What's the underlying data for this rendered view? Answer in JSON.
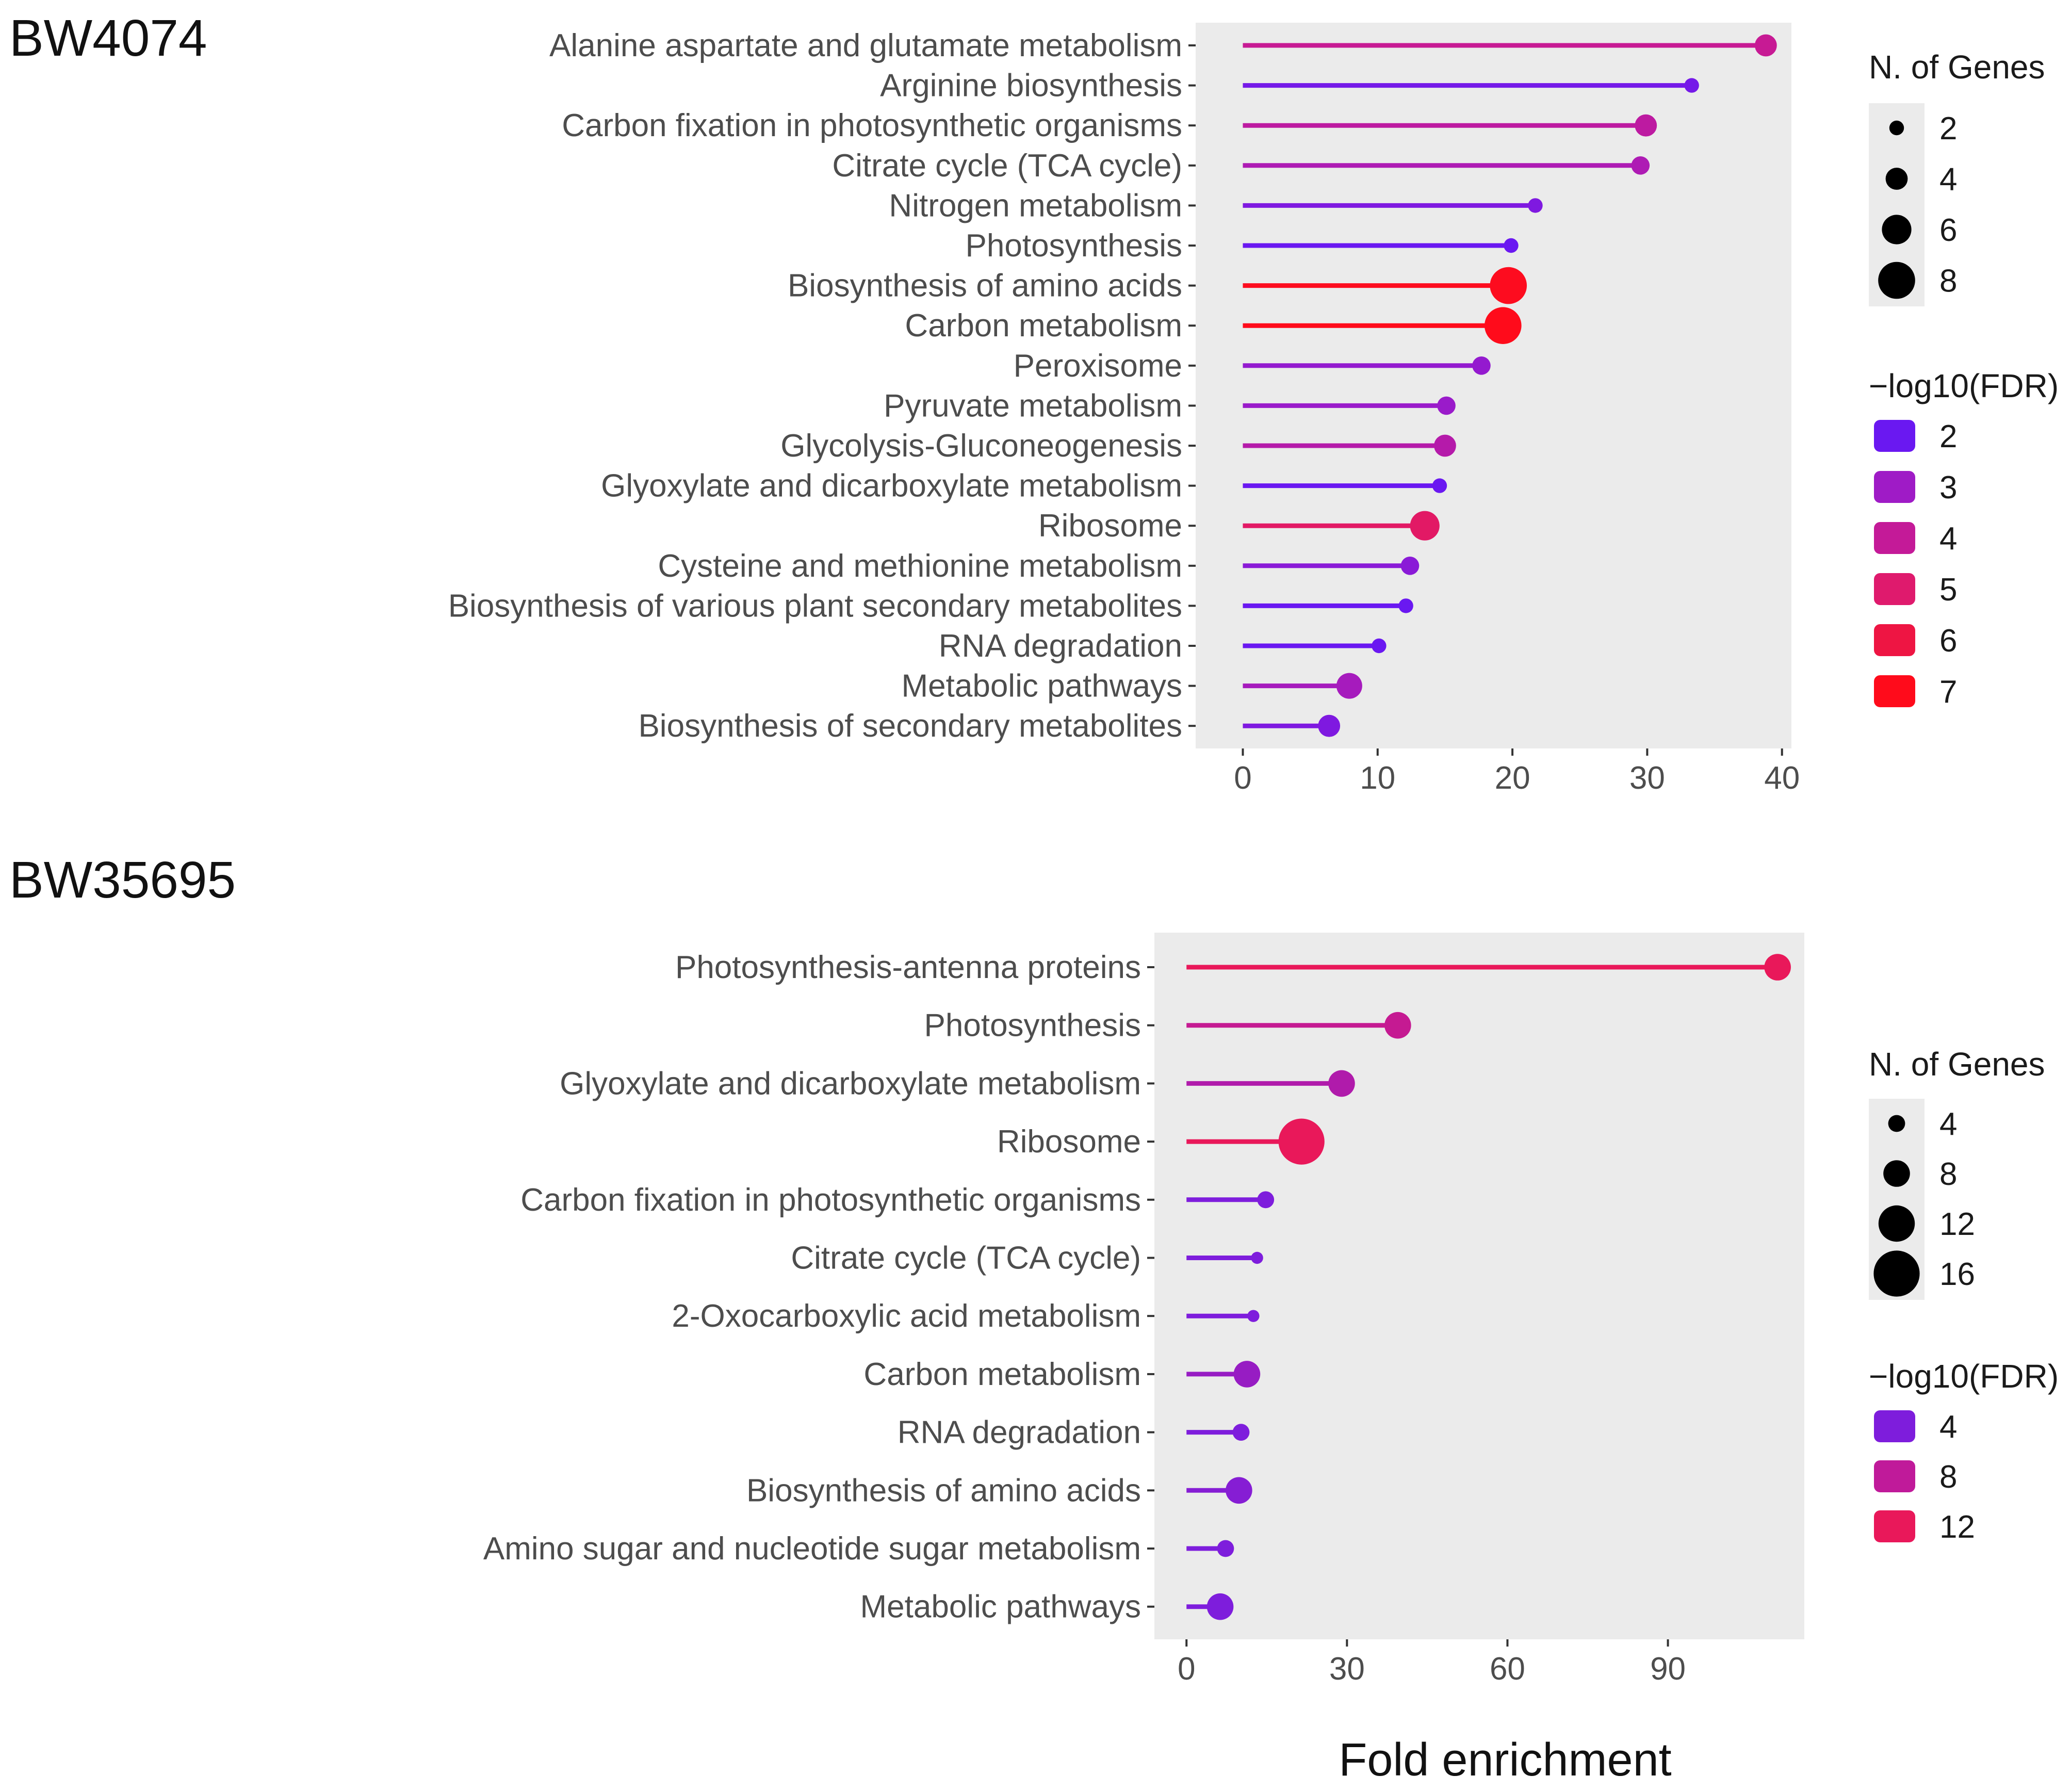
{
  "chart_data": [
    {
      "type": "lollipop",
      "title": "BW4074",
      "xlabel": "",
      "ylabel": "",
      "xlim": [
        -3.5,
        40.7
      ],
      "xticks": [
        0,
        10,
        20,
        30,
        40
      ],
      "grid": false,
      "categories": [
        "Alanine aspartate and glutamate metabolism",
        "Arginine biosynthesis",
        "Carbon fixation in photosynthetic organisms",
        "Citrate cycle (TCA cycle)",
        "Nitrogen metabolism",
        "Photosynthesis",
        "Biosynthesis of amino acids",
        "Carbon metabolism",
        "Peroxisome",
        "Pyruvate metabolism",
        "Glycolysis-Gluconeogenesis",
        "Glyoxylate and dicarboxylate metabolism",
        "Ribosome",
        "Cysteine and methionine metabolism",
        "Biosynthesis of various plant secondary metabolites",
        "RNA degradation",
        "Metabolic pathways",
        "Biosynthesis of secondary metabolites"
      ],
      "fold_enrichment": [
        38.8,
        33.3,
        29.9,
        29.5,
        21.7,
        19.9,
        19.7,
        19.3,
        17.7,
        15.1,
        15.0,
        14.6,
        13.5,
        12.4,
        12.1,
        10.1,
        7.9,
        6.4
      ],
      "n_genes": [
        4,
        2,
        4,
        3,
        2,
        2,
        8,
        8,
        3,
        3,
        4,
        2,
        6,
        3,
        2,
        2,
        5,
        4
      ],
      "neg_log10_fdr": [
        4.1,
        2.2,
        3.8,
        3.4,
        2.4,
        2.0,
        6.9,
        7.0,
        2.8,
        2.9,
        3.6,
        1.7,
        5.2,
        2.6,
        1.5,
        1.2,
        3.2,
        2.4
      ],
      "legend_size": {
        "title": "N. of Genes",
        "values": [
          2,
          4,
          6,
          8
        ]
      },
      "legend_color": {
        "title": "−log10(FDR)",
        "values": [
          2,
          3,
          4,
          5,
          6,
          7
        ],
        "colors": [
          "#6a18f1",
          "#9f1bc6",
          "#c41a98",
          "#df1a6d",
          "#ee1543",
          "#ff0b1b"
        ]
      }
    },
    {
      "type": "lollipop",
      "title": "BW35695",
      "xlabel": "Fold enrichment",
      "ylabel": "",
      "xlim": [
        -6.0,
        115.5
      ],
      "xticks": [
        0,
        30,
        60,
        90
      ],
      "grid": false,
      "categories": [
        "Photosynthesis-antenna proteins",
        "Photosynthesis",
        "Glyoxylate and dicarboxylate metabolism",
        "Ribosome",
        "Carbon fixation in photosynthetic organisms",
        "Citrate cycle (TCA cycle)",
        "2-Oxocarboxylic acid metabolism",
        "Carbon metabolism",
        "RNA degradation",
        "Biosynthesis of amino acids",
        "Amino sugar and nucleotide sugar metabolism",
        "Metabolic pathways"
      ],
      "fold_enrichment": [
        110.5,
        39.5,
        29.0,
        21.5,
        14.8,
        13.2,
        12.5,
        11.3,
        10.2,
        9.8,
        7.3,
        6.3
      ],
      "n_genes": [
        8,
        8,
        8,
        16,
        4,
        2,
        2,
        8,
        4,
        8,
        4,
        8
      ],
      "neg_log10_fdr": [
        12.5,
        8.5,
        7.0,
        15.0,
        3.5,
        1.0,
        1.0,
        5.5,
        2.0,
        4.5,
        1.5,
        3.5
      ],
      "legend_size": {
        "title": "N. of Genes",
        "values": [
          4,
          8,
          12,
          16
        ]
      },
      "legend_color": {
        "title": "−log10(FDR)",
        "values": [
          4,
          8,
          12
        ],
        "colors": [
          "#7e1ddc",
          "#c01a9a",
          "#e9185a"
        ]
      }
    }
  ]
}
